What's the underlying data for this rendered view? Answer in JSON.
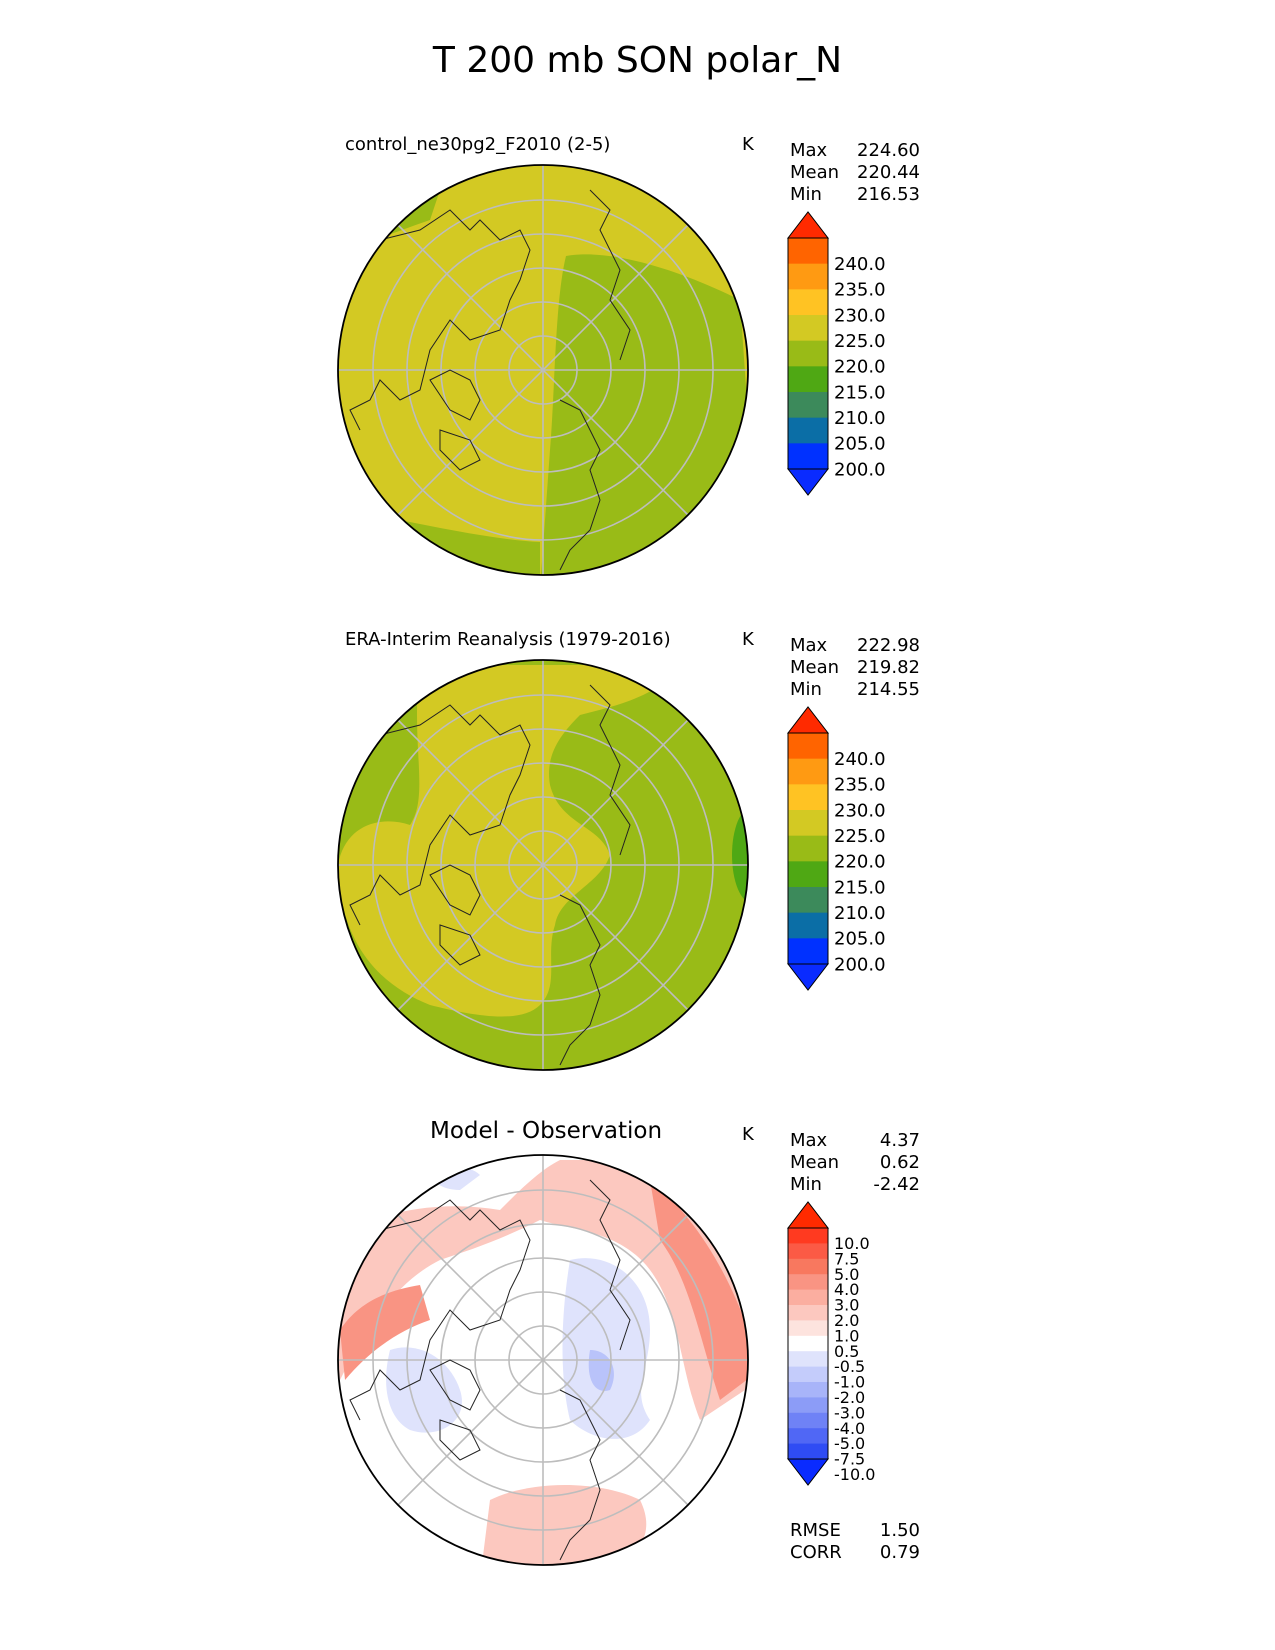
{
  "title": "T 200 mb SON polar_N",
  "units": "K",
  "chart_data": [
    {
      "type": "heatmap",
      "projection": "north-polar-stereographic",
      "title": "control_ne30pg2_F2010 (2-5)",
      "units": "K",
      "stats": {
        "max_label": "Max",
        "max": "224.60",
        "mean_label": "Mean",
        "mean": "220.44",
        "min_label": "Min",
        "min": "216.53"
      },
      "colorbar": {
        "levels": [
          "240.0",
          "235.0",
          "230.0",
          "225.0",
          "220.0",
          "215.0",
          "210.0",
          "205.0",
          "200.0"
        ],
        "colors": [
          "#ff2a00",
          "#ff6400",
          "#ff9a12",
          "#ffc323",
          "#d3c923",
          "#99bb17",
          "#4fa814",
          "#3c8a5b",
          "#0b6ea6",
          "#0031ff",
          "#0a2bff"
        ]
      },
      "field_colors": {
        "warm": "#d3c923",
        "cool": "#99bb17"
      }
    },
    {
      "type": "heatmap",
      "projection": "north-polar-stereographic",
      "title": "ERA-Interim Reanalysis (1979-2016)",
      "units": "K",
      "stats": {
        "max_label": "Max",
        "max": "222.98",
        "mean_label": "Mean",
        "mean": "219.82",
        "min_label": "Min",
        "min": "214.55"
      },
      "colorbar": {
        "levels": [
          "240.0",
          "235.0",
          "230.0",
          "225.0",
          "220.0",
          "215.0",
          "210.0",
          "205.0",
          "200.0"
        ],
        "colors": [
          "#ff2a00",
          "#ff6400",
          "#ff9a12",
          "#ffc323",
          "#d3c923",
          "#99bb17",
          "#4fa814",
          "#3c8a5b",
          "#0b6ea6",
          "#0031ff",
          "#0a2bff"
        ]
      },
      "field_colors": {
        "warm": "#d3c923",
        "cool": "#99bb17",
        "coldest": "#4fa814"
      }
    },
    {
      "type": "heatmap",
      "projection": "north-polar-stereographic",
      "title": "Model - Observation",
      "units": "K",
      "stats": {
        "max_label": "Max",
        "max": "4.37",
        "mean_label": "Mean",
        "mean": "0.62",
        "min_label": "Min",
        "min": "-2.42"
      },
      "metrics": {
        "rmse_label": "RMSE",
        "rmse": "1.50",
        "corr_label": "CORR",
        "corr": "0.79"
      },
      "colorbar": {
        "levels": [
          "10.0",
          "7.5",
          "5.0",
          "4.0",
          "3.0",
          "2.0",
          "1.0",
          "0.5",
          "-0.5",
          "-1.0",
          "-2.0",
          "-3.0",
          "-4.0",
          "-5.0",
          "-7.5",
          "-10.0"
        ],
        "colors": [
          "#ff2a00",
          "#ff3a20",
          "#fb5a45",
          "#f8785f",
          "#f99483",
          "#fbaea0",
          "#fcc8bf",
          "#fde3de",
          "#ffffff",
          "#dfe3fc",
          "#c4ccfb",
          "#a8b4f9",
          "#8c9cf7",
          "#6f82f6",
          "#5067f5",
          "#2f4cf4",
          "#0a2bff"
        ]
      },
      "field_colors": {
        "pos1": "#fcc8bf",
        "pos2": "#f99483",
        "neg1": "#dfe3fc",
        "neg2": "#b9c3fa"
      }
    }
  ]
}
